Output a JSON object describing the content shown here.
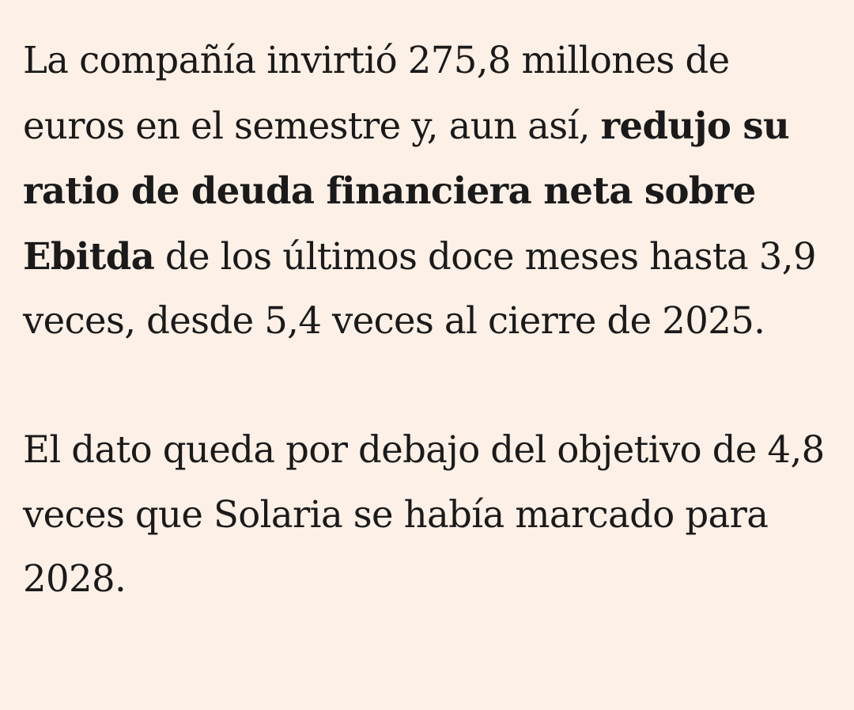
{
  "article": {
    "paragraph_1": {
      "text_before": "La compañía invirtió 275,8 millones de euros en el semestre y, aun así, ",
      "bold": "redujo su ratio de deuda financiera neta sobre Ebitda",
      "text_after": " de los últimos doce meses hasta 3,9 veces, desde 5,4 veces al cierre de 2025."
    },
    "paragraph_2": {
      "text": "El dato queda por debajo del objetivo de 4,8 veces que Solaria se había marcado para 2028."
    }
  },
  "colors": {
    "background": "#fdf0e6",
    "text": "#1a1a1a"
  }
}
